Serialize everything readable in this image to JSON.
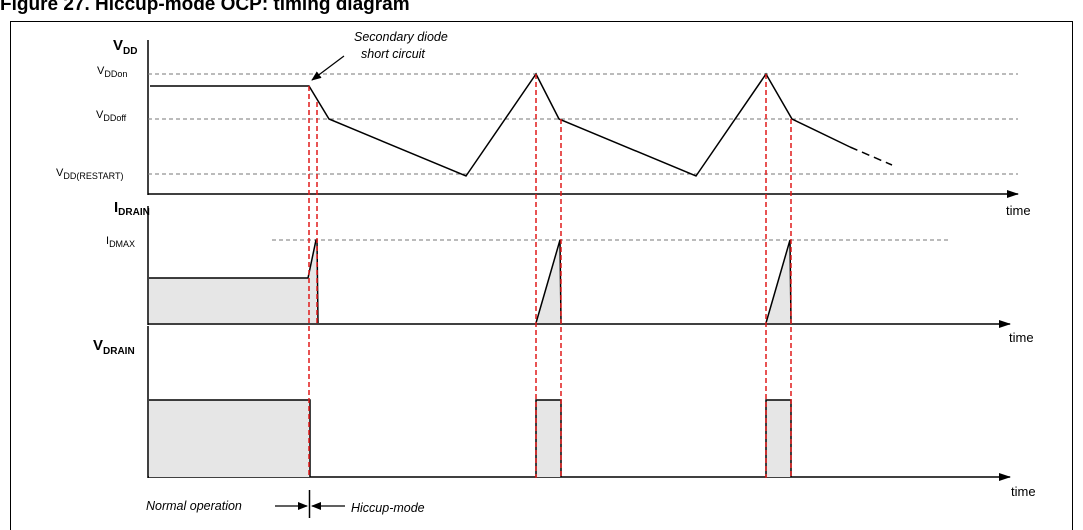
{
  "figure_title": "Figure 27. Hiccup-mode OCP: timing diagram",
  "vdd": {
    "main": "V",
    "sub": "DD"
  },
  "vdd_on": {
    "main": "V",
    "sub": "DDon"
  },
  "vdd_off": {
    "main": "V",
    "sub": "DDoff"
  },
  "vdd_restart": {
    "main": "V",
    "sub": "DD(RESTART)"
  },
  "idrain": {
    "main": "I",
    "sub": "DRAIN"
  },
  "idmax": {
    "main": "I",
    "sub": "DMAX"
  },
  "vdrain": {
    "main": "V",
    "sub": "DRAIN"
  },
  "time_label": "time",
  "annotation": {
    "line1": "Secondary diode",
    "line2": "short circuit"
  },
  "normal_operation": "Normal operation",
  "hiccup_mode": "Hiccup-mode",
  "colors": {
    "dashed_gray": "#777777",
    "marker_red": "#e11a1a",
    "fill_gray": "#e6e6e6",
    "line": "#000000"
  }
}
